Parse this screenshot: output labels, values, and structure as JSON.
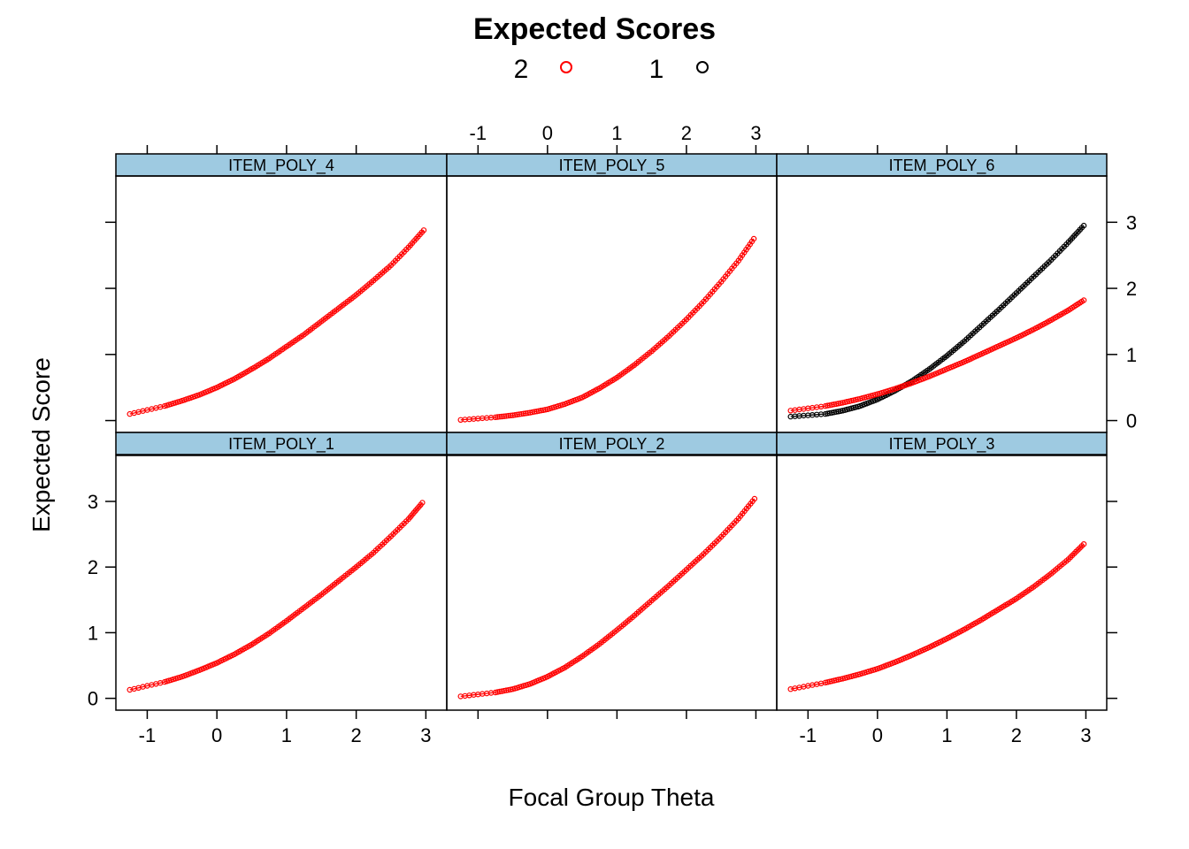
{
  "chart_data": {
    "type": "line",
    "title": "Expected Scores",
    "xlabel": "Focal Group Theta",
    "ylabel": "Expected Score",
    "xlim": [
      -1.45,
      3.3
    ],
    "ylim": [
      -0.18,
      3.7
    ],
    "x_ticks": [
      "-1",
      "0",
      "1",
      "2",
      "3"
    ],
    "y_ticks": [
      "0",
      "1",
      "2",
      "3"
    ],
    "legend": {
      "placement": "top",
      "entries": [
        {
          "label": "2",
          "color": "#ff0000"
        },
        {
          "label": "1",
          "color": "#000000"
        }
      ]
    },
    "strip_color": "#9ecae1",
    "panels": [
      {
        "name": "ITEM_POLY_4",
        "series": [
          {
            "group": "2",
            "color": "#ff0000",
            "points": [
              [
                -1.25,
                0.1
              ],
              [
                -0.75,
                0.22
              ],
              [
                -0.5,
                0.3
              ],
              [
                -0.25,
                0.39
              ],
              [
                0,
                0.5
              ],
              [
                0.25,
                0.63
              ],
              [
                0.5,
                0.78
              ],
              [
                0.75,
                0.94
              ],
              [
                1,
                1.12
              ],
              [
                1.25,
                1.3
              ],
              [
                1.5,
                1.5
              ],
              [
                1.75,
                1.7
              ],
              [
                2,
                1.9
              ],
              [
                2.25,
                2.12
              ],
              [
                2.5,
                2.35
              ],
              [
                2.75,
                2.62
              ],
              [
                2.97,
                2.88
              ]
            ]
          }
        ]
      },
      {
        "name": "ITEM_POLY_5",
        "series": [
          {
            "group": "2",
            "color": "#ff0000",
            "points": [
              [
                -1.25,
                0.01
              ],
              [
                -0.75,
                0.05
              ],
              [
                -0.5,
                0.08
              ],
              [
                -0.25,
                0.12
              ],
              [
                0,
                0.17
              ],
              [
                0.25,
                0.25
              ],
              [
                0.5,
                0.35
              ],
              [
                0.75,
                0.49
              ],
              [
                1,
                0.65
              ],
              [
                1.25,
                0.84
              ],
              [
                1.5,
                1.05
              ],
              [
                1.75,
                1.28
              ],
              [
                2,
                1.53
              ],
              [
                2.25,
                1.8
              ],
              [
                2.5,
                2.1
              ],
              [
                2.75,
                2.42
              ],
              [
                2.97,
                2.75
              ]
            ]
          }
        ]
      },
      {
        "name": "ITEM_POLY_6",
        "series": [
          {
            "group": "1",
            "color": "#000000",
            "points": [
              [
                -1.25,
                0.06
              ],
              [
                -0.75,
                0.1
              ],
              [
                -0.5,
                0.15
              ],
              [
                -0.25,
                0.22
              ],
              [
                0,
                0.32
              ],
              [
                0.25,
                0.45
              ],
              [
                0.5,
                0.6
              ],
              [
                0.75,
                0.78
              ],
              [
                1,
                0.98
              ],
              [
                1.25,
                1.2
              ],
              [
                1.5,
                1.44
              ],
              [
                1.75,
                1.68
              ],
              [
                2,
                1.93
              ],
              [
                2.25,
                2.18
              ],
              [
                2.5,
                2.43
              ],
              [
                2.75,
                2.7
              ],
              [
                2.97,
                2.95
              ]
            ]
          },
          {
            "group": "2",
            "color": "#ff0000",
            "points": [
              [
                -1.25,
                0.15
              ],
              [
                -0.75,
                0.22
              ],
              [
                -0.5,
                0.27
              ],
              [
                -0.25,
                0.33
              ],
              [
                0,
                0.4
              ],
              [
                0.25,
                0.48
              ],
              [
                0.5,
                0.57
              ],
              [
                0.75,
                0.67
              ],
              [
                1,
                0.78
              ],
              [
                1.25,
                0.89
              ],
              [
                1.5,
                1.01
              ],
              [
                1.75,
                1.13
              ],
              [
                2,
                1.25
              ],
              [
                2.25,
                1.38
              ],
              [
                2.5,
                1.52
              ],
              [
                2.75,
                1.67
              ],
              [
                2.97,
                1.82
              ]
            ]
          }
        ]
      },
      {
        "name": "ITEM_POLY_1",
        "series": [
          {
            "group": "2",
            "color": "#ff0000",
            "points": [
              [
                -1.25,
                0.13
              ],
              [
                -0.75,
                0.25
              ],
              [
                -0.5,
                0.33
              ],
              [
                -0.25,
                0.43
              ],
              [
                0,
                0.54
              ],
              [
                0.25,
                0.67
              ],
              [
                0.5,
                0.82
              ],
              [
                0.75,
                0.99
              ],
              [
                1,
                1.18
              ],
              [
                1.25,
                1.38
              ],
              [
                1.5,
                1.58
              ],
              [
                1.75,
                1.79
              ],
              [
                2,
                2.0
              ],
              [
                2.25,
                2.22
              ],
              [
                2.5,
                2.47
              ],
              [
                2.75,
                2.73
              ],
              [
                2.95,
                2.98
              ]
            ]
          }
        ]
      },
      {
        "name": "ITEM_POLY_2",
        "series": [
          {
            "group": "2",
            "color": "#ff0000",
            "points": [
              [
                -1.25,
                0.03
              ],
              [
                -0.75,
                0.09
              ],
              [
                -0.5,
                0.14
              ],
              [
                -0.25,
                0.22
              ],
              [
                0,
                0.33
              ],
              [
                0.25,
                0.47
              ],
              [
                0.5,
                0.64
              ],
              [
                0.75,
                0.83
              ],
              [
                1,
                1.04
              ],
              [
                1.25,
                1.26
              ],
              [
                1.5,
                1.49
              ],
              [
                1.75,
                1.72
              ],
              [
                2,
                1.96
              ],
              [
                2.25,
                2.2
              ],
              [
                2.5,
                2.46
              ],
              [
                2.75,
                2.74
              ],
              [
                2.98,
                3.04
              ]
            ]
          }
        ]
      },
      {
        "name": "ITEM_POLY_3",
        "series": [
          {
            "group": "2",
            "color": "#ff0000",
            "points": [
              [
                -1.25,
                0.14
              ],
              [
                -0.75,
                0.24
              ],
              [
                -0.5,
                0.3
              ],
              [
                -0.25,
                0.37
              ],
              [
                0,
                0.45
              ],
              [
                0.25,
                0.55
              ],
              [
                0.5,
                0.66
              ],
              [
                0.75,
                0.78
              ],
              [
                1,
                0.91
              ],
              [
                1.25,
                1.05
              ],
              [
                1.5,
                1.2
              ],
              [
                1.75,
                1.36
              ],
              [
                2,
                1.52
              ],
              [
                2.25,
                1.7
              ],
              [
                2.5,
                1.9
              ],
              [
                2.75,
                2.12
              ],
              [
                2.97,
                2.35
              ]
            ]
          }
        ]
      }
    ]
  }
}
